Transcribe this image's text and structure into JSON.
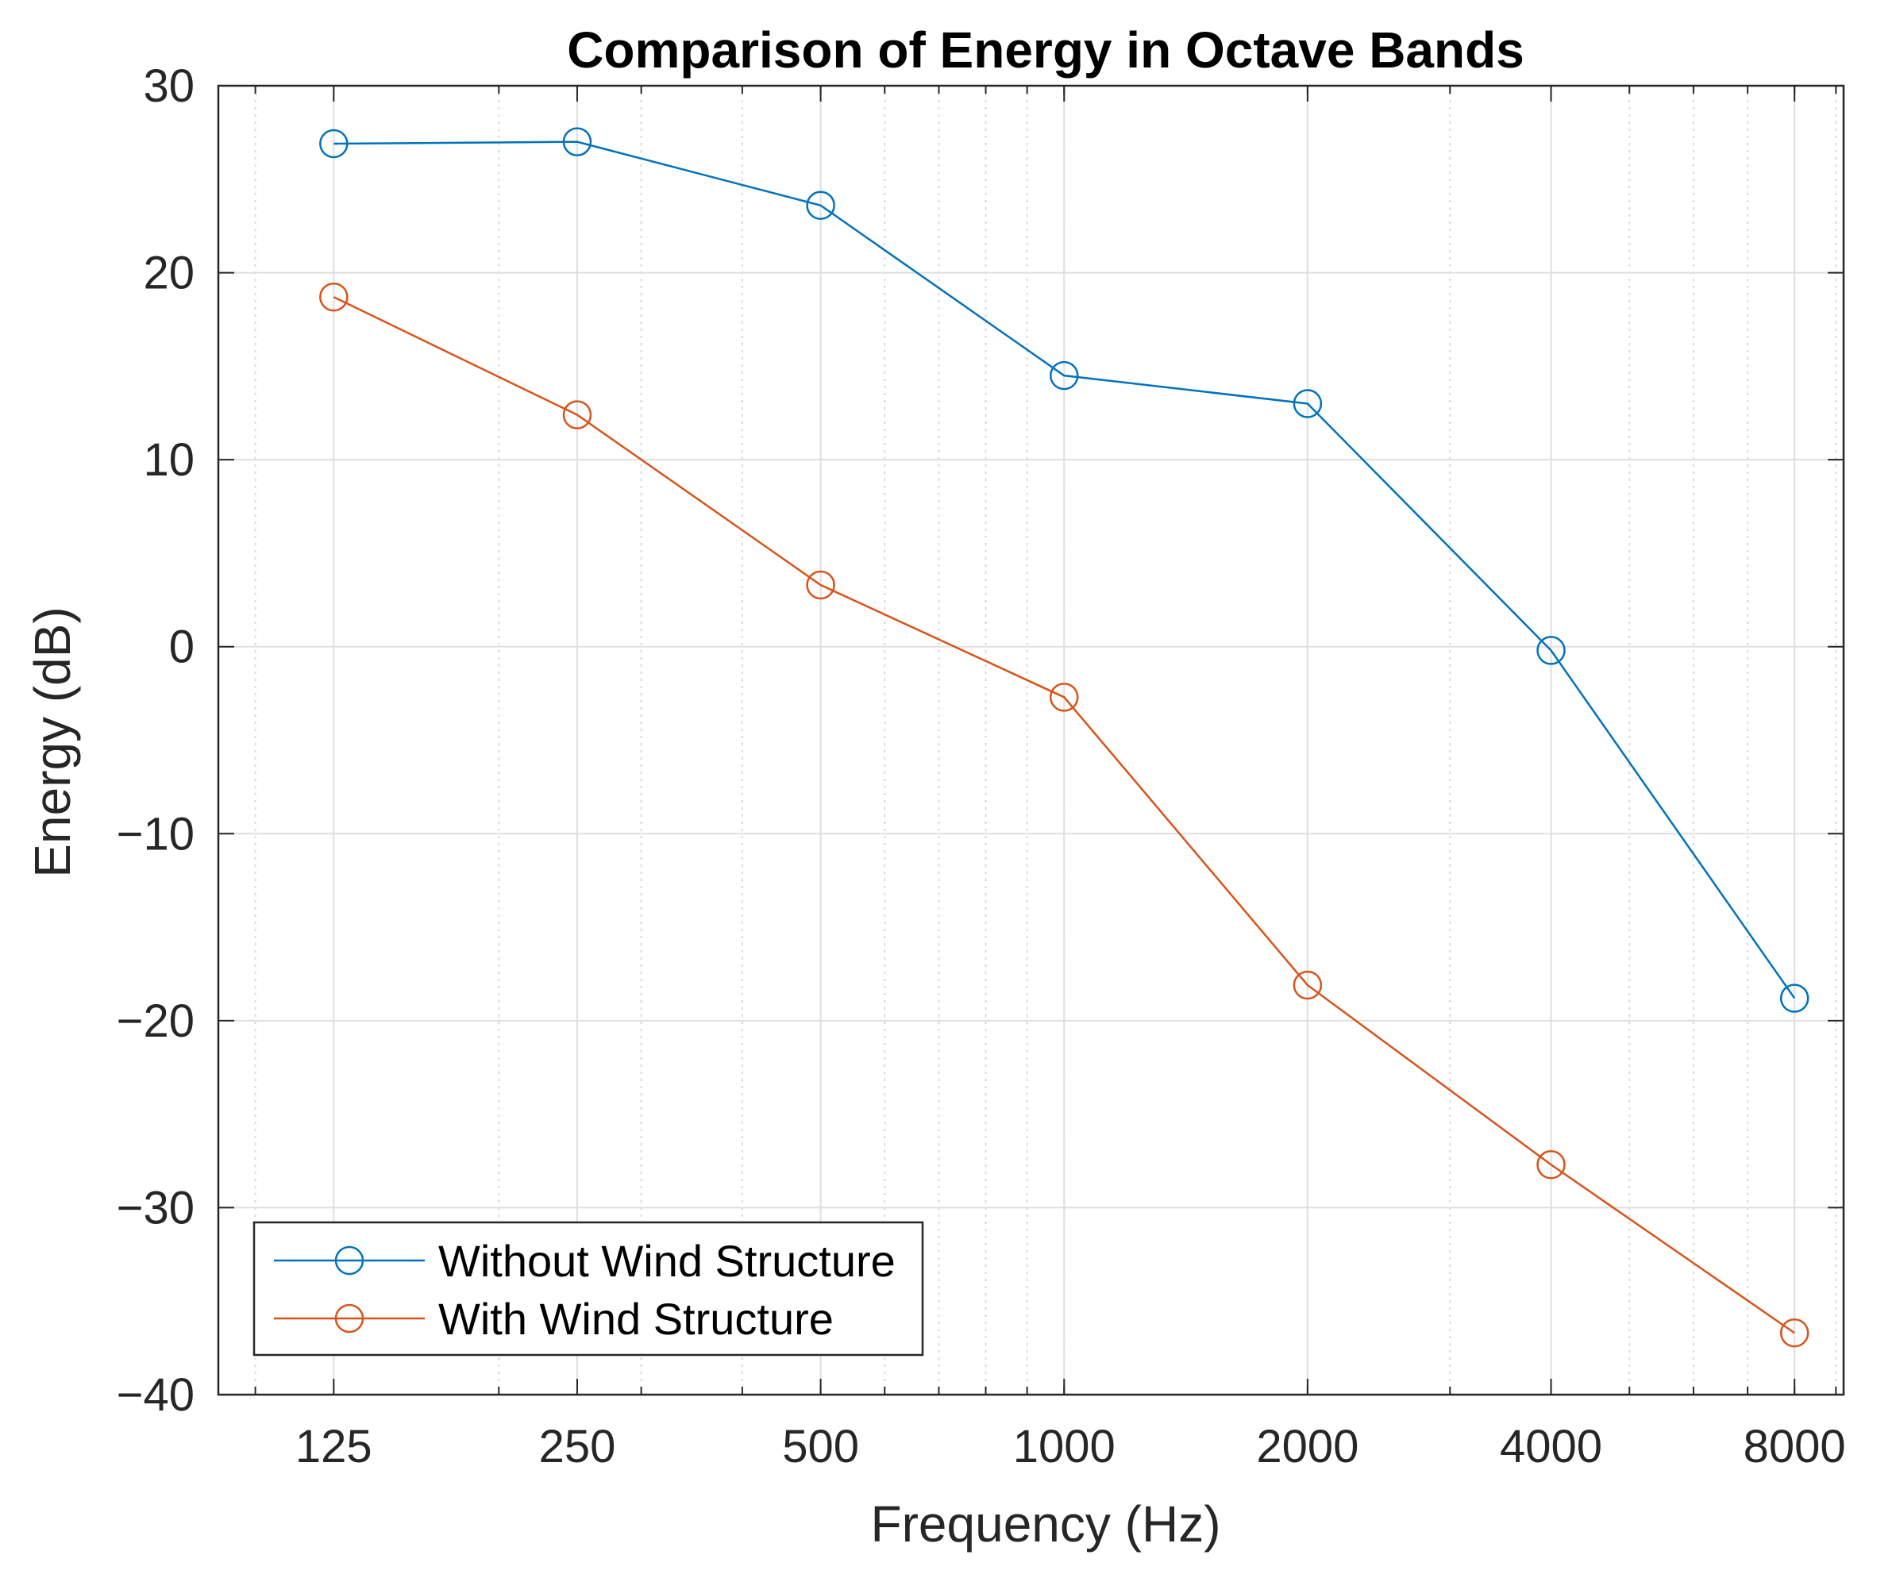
{
  "chart_data": {
    "type": "line",
    "title": "Comparison of Energy in Octave Bands",
    "xlabel": "Frequency (Hz)",
    "ylabel": "Energy (dB)",
    "xscale": "log2",
    "x": [
      125,
      250,
      500,
      1000,
      2000,
      4000,
      8000
    ],
    "x_tick_labels": [
      "125",
      "250",
      "500",
      "1000",
      "2000",
      "4000",
      "8000"
    ],
    "xlim": [
      90,
      9200
    ],
    "ylim": [
      -40,
      30
    ],
    "y_ticks": [
      30,
      20,
      10,
      0,
      -10,
      -20,
      -30,
      -40
    ],
    "y_tick_labels": [
      "30",
      "20",
      "10",
      "0",
      "−10",
      "−20",
      "−30",
      "−40"
    ],
    "grid": true,
    "legend_position": "bottom-left",
    "marker": "circle",
    "series": [
      {
        "name": "Without Wind Structure",
        "color": "#0072BD",
        "values": [
          26.9,
          27.0,
          23.6,
          14.5,
          13.0,
          -0.2,
          -18.8
        ]
      },
      {
        "name": "With Wind Structure",
        "color": "#D95319",
        "values": [
          18.7,
          12.4,
          3.3,
          -2.7,
          -18.1,
          -27.7,
          -36.7
        ]
      }
    ]
  }
}
